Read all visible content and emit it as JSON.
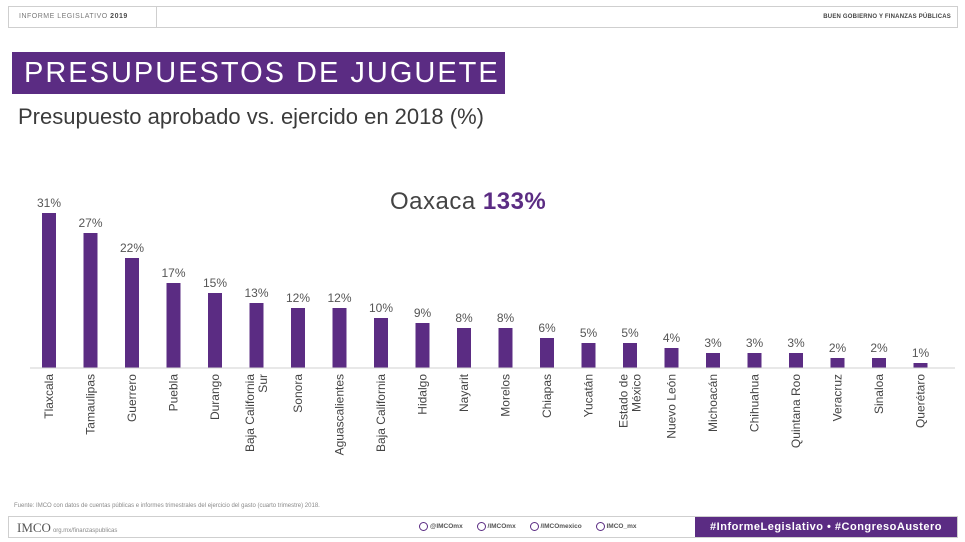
{
  "header": {
    "left_label": "INFORME LEGISLATIVO",
    "left_year": "2019",
    "right_label": "BUEN GOBIERNO Y FINANZAS PÚBLICAS"
  },
  "banner_title": "PRESUPUESTOS DE JUGUETE",
  "callout": {
    "state": "Oaxaca",
    "value": "133%"
  },
  "chart_data": {
    "type": "bar",
    "title": "Presupuesto aprobado vs. ejercido en 2018 (%)",
    "categories": [
      "Tlaxcala",
      "Tamaulipas",
      "Guerrero",
      "Puebla",
      "Durango",
      "Baja California Sur",
      "Sonora",
      "Aguascalientes",
      "Baja California",
      "Hidalgo",
      "Nayarit",
      "Morelos",
      "Chiapas",
      "Yucatán",
      "Estado de México",
      "Nuevo León",
      "Michoacán",
      "Chihuahua",
      "Quintana Roo",
      "Veracruz",
      "Sinaloa",
      "Querétaro"
    ],
    "category_lines": [
      [
        "Tlaxcala"
      ],
      [
        "Tamaulipas"
      ],
      [
        "Guerrero"
      ],
      [
        "Puebla"
      ],
      [
        "Durango"
      ],
      [
        "Baja California",
        "Sur"
      ],
      [
        "Sonora"
      ],
      [
        "Aguascalientes"
      ],
      [
        "Baja California"
      ],
      [
        "Hidalgo"
      ],
      [
        "Nayarit"
      ],
      [
        "Morelos"
      ],
      [
        "Chiapas"
      ],
      [
        "Yucatán"
      ],
      [
        "Estado de",
        "México"
      ],
      [
        "Nuevo León"
      ],
      [
        "Michoacán"
      ],
      [
        "Chihuahua"
      ],
      [
        "Quintana Roo"
      ],
      [
        "Veracruz"
      ],
      [
        "Sinaloa"
      ],
      [
        "Querétaro"
      ]
    ],
    "values": [
      31,
      27,
      22,
      17,
      15,
      13,
      12,
      12,
      10,
      9,
      8,
      8,
      6,
      5,
      5,
      4,
      3,
      3,
      3,
      2,
      2,
      1
    ],
    "value_labels": [
      "31%",
      "27%",
      "22%",
      "17%",
      "15%",
      "13%",
      "12%",
      "12%",
      "10%",
      "9%",
      "8%",
      "8%",
      "6%",
      "5%",
      "5%",
      "4%",
      "3%",
      "3%",
      "3%",
      "2%",
      "2%",
      "1%"
    ],
    "ylim": [
      0,
      31
    ],
    "grid": false,
    "bar_color": "#5b2c83"
  },
  "source": {
    "label": "Fuente:",
    "text": " IMCO con datos de cuentas públicas e informes trimestrales del ejercicio del gasto (cuarto trimestre) 2018."
  },
  "footer": {
    "logo": "IMCO",
    "logo_url": "org.mx/finanzaspublicas",
    "social": [
      "@IMCOmx",
      "/IMCOmx",
      "/IMCOmexico",
      "IMCO_mx"
    ],
    "hashtags": "#InformeLegislativo • #CongresoAustero"
  }
}
